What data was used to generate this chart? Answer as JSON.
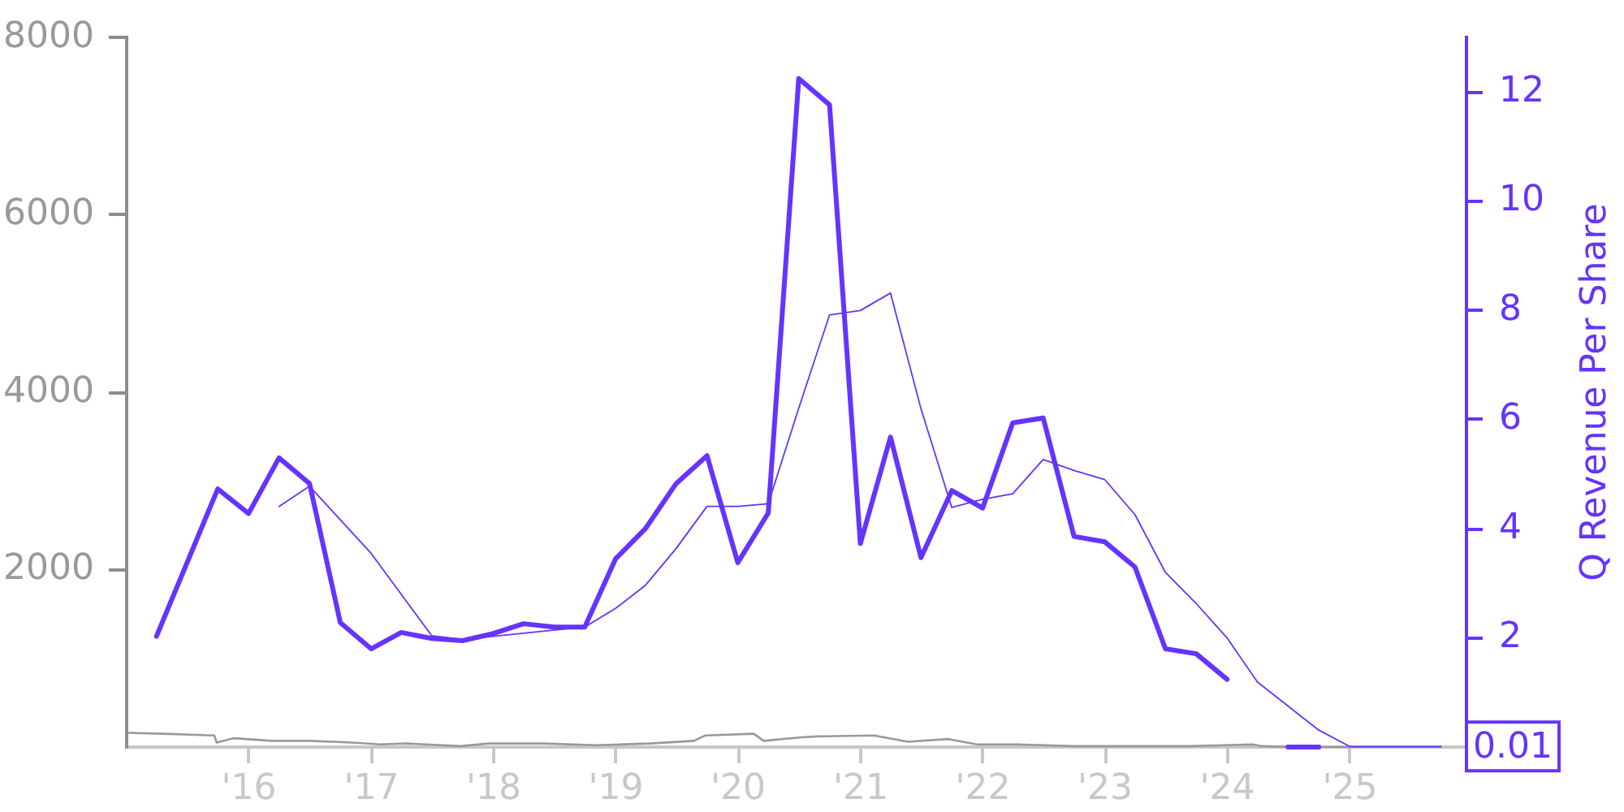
{
  "chart_data": {
    "type": "line",
    "y2label": "Q Revenue Per Share",
    "xlim": [
      "2015-01-01",
      "2025-12-15"
    ],
    "xticks": [
      {
        "value": "2016-01-01",
        "label": "'16"
      },
      {
        "value": "2017-01-01",
        "label": "'17"
      },
      {
        "value": "2018-01-01",
        "label": "'18"
      },
      {
        "value": "2019-01-01",
        "label": "'19"
      },
      {
        "value": "2020-01-01",
        "label": "'20"
      },
      {
        "value": "2021-01-01",
        "label": "'21"
      },
      {
        "value": "2022-01-01",
        "label": "'22"
      },
      {
        "value": "2023-01-01",
        "label": "'23"
      },
      {
        "value": "2024-01-01",
        "label": "'24"
      },
      {
        "value": "2025-01-01",
        "label": "'25"
      }
    ],
    "ylim": [
      0,
      8000
    ],
    "yticks": [
      2000,
      4000,
      6000,
      8000
    ],
    "y2lim": [
      0,
      13
    ],
    "y2ticks": [
      2,
      4,
      6,
      8,
      10,
      12
    ],
    "grid": false,
    "legend": false,
    "series": [
      {
        "color": "#999999",
        "x": [
          "2015-01-08",
          "2015-04-20",
          "2015-09-20",
          "2015-09-27",
          "2015-11-17",
          "2016-03-10",
          "2016-07-01",
          "2016-11-06",
          "2017-01-26",
          "2017-04-16",
          "2017-09-24",
          "2017-12-17",
          "2018-05-27",
          "2018-11-03",
          "2019-04-13",
          "2019-08-22",
          "2019-09-24",
          "2020-02-17",
          "2020-03-17",
          "2020-07-08",
          "2020-08-25",
          "2021-02-10",
          "2021-05-22",
          "2021-09-20",
          "2021-12-14",
          "2022-04-13",
          "2022-09-27",
          "2023-03-18",
          "2023-09-06",
          "2024-03-17",
          "2024-04-12",
          "2024-08-11",
          "2025-09-30"
        ],
        "values": [
          160,
          150,
          130,
          50,
          100,
          70,
          70,
          50,
          30,
          40,
          10,
          40,
          40,
          20,
          40,
          70,
          130,
          150,
          70,
          110,
          120,
          130,
          60,
          90,
          30,
          30,
          10,
          10,
          10,
          30,
          10,
          0,
          0
        ]
      },
      {
        "color": "#6633ff",
        "axis": "y2",
        "x": [
          "2015-03-31",
          "2015-09-30",
          "2015-12-31",
          "2016-03-31",
          "2016-06-30",
          "2016-09-30",
          "2016-12-31",
          "2017-03-31",
          "2017-06-30",
          "2017-09-30",
          "2017-12-31",
          "2018-03-31",
          "2018-06-30",
          "2018-09-30",
          "2018-12-31",
          "2019-03-31",
          "2019-06-30",
          "2019-09-30",
          "2019-12-31",
          "2020-03-31",
          "2020-06-30",
          "2020-09-30",
          "2020-12-31",
          "2021-03-31",
          "2021-06-30",
          "2021-09-30",
          "2021-12-31",
          "2022-03-31",
          "2022-06-30",
          "2022-09-30",
          "2022-12-31",
          "2023-03-31",
          "2023-06-30",
          "2023-09-30",
          "2023-12-31",
          "2024-03-31",
          "2024-06-30",
          "2024-09-30"
        ],
        "values": [
          2.03,
          4.73,
          4.28,
          5.3,
          4.83,
          2.28,
          1.8,
          2.1,
          1.99,
          1.95,
          2.08,
          2.26,
          2.2,
          2.2,
          3.45,
          4.01,
          4.83,
          5.34,
          3.38,
          4.29,
          12.25,
          11.77,
          3.73,
          5.68,
          3.47,
          4.7,
          4.38,
          5.94,
          6.03,
          3.86,
          3.76,
          3.3,
          1.8,
          1.71,
          1.24,
          null,
          0,
          0
        ]
      },
      {
        "color": "#6633ff",
        "axis": "y2",
        "x": [
          "2016-03-31",
          "2016-06-30",
          "2016-12-31",
          "2017-06-30",
          "2017-09-30",
          "2017-12-31",
          "2018-09-30",
          "2018-12-31",
          "2019-03-31",
          "2019-06-30",
          "2019-09-30",
          "2019-12-31",
          "2020-03-31",
          "2020-06-30",
          "2020-09-30",
          "2020-12-31",
          "2021-03-31",
          "2021-06-30",
          "2021-09-30",
          "2021-12-31",
          "2022-03-31",
          "2022-06-30",
          "2022-09-30",
          "2022-12-31",
          "2023-03-31",
          "2023-06-30",
          "2023-09-30",
          "2023-12-31",
          "2024-03-31",
          "2024-09-30",
          "2024-12-31",
          "2025-09-30"
        ],
        "values": [
          4.41,
          4.78,
          3.55,
          2.04,
          1.97,
          2.03,
          2.2,
          2.54,
          2.97,
          3.64,
          4.41,
          4.41,
          4.46,
          6.21,
          7.92,
          8.0,
          8.32,
          6.2,
          4.39,
          4.54,
          4.64,
          5.27,
          5.07,
          4.9,
          4.26,
          3.2,
          2.63,
          2.0,
          1.19,
          0.31,
          0.01,
          0.01
        ],
        "value_labels": [
          null,
          null,
          null,
          null,
          null,
          null,
          null,
          null,
          null,
          null,
          null,
          null,
          null,
          null,
          null,
          null,
          null,
          null,
          null,
          null,
          null,
          null,
          null,
          null,
          null,
          null,
          null,
          null,
          null,
          null,
          null,
          "0.01"
        ]
      }
    ]
  }
}
